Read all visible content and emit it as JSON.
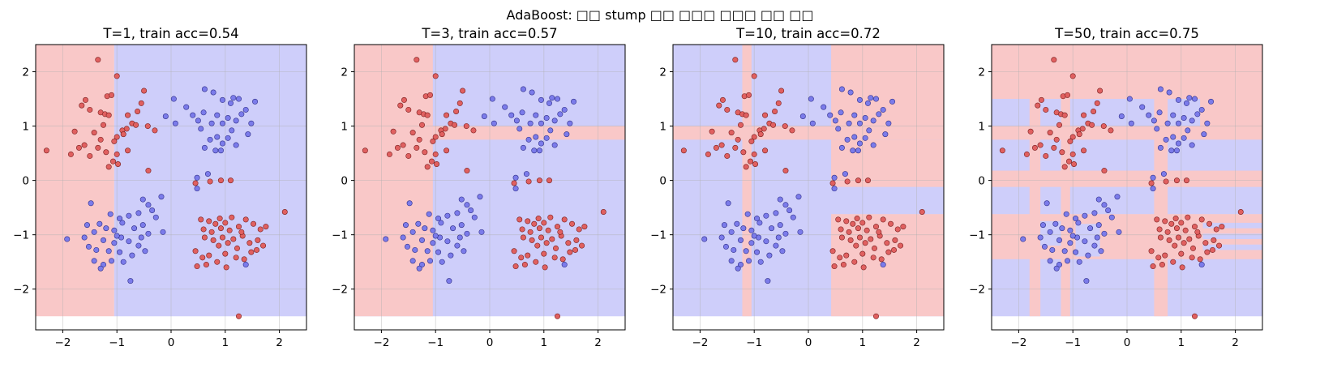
{
  "figure": {
    "suptitle": "AdaBoost: □□ stump □□ □□□ □□□ □□ □□"
  },
  "colors": {
    "red_region": "#f9c8c8",
    "blue_region": "#cecefa",
    "red_point": "#e06060",
    "blue_point": "#7b7bea",
    "point_edge": "#7a2020",
    "grid": "#b0b0b0"
  },
  "axes": {
    "xlim": [
      -2.5,
      2.5
    ],
    "ylim": [
      -2.75,
      2.5
    ],
    "xticks": [
      -2,
      -1,
      0,
      1,
      2
    ],
    "yticks": [
      -2,
      -1,
      0,
      1,
      2
    ],
    "grid": true
  },
  "chart_data": [
    {
      "type": "scatter",
      "title": "T=1, train acc=0.54",
      "T": 1,
      "train_acc": 0.54,
      "regions": [
        {
          "class": "red",
          "x0": -2.5,
          "x1": -1.05,
          "y0": -2.5,
          "y1": 2.5
        },
        {
          "class": "blue",
          "x0": -1.05,
          "x1": 2.5,
          "y0": -2.5,
          "y1": 2.5
        }
      ]
    },
    {
      "type": "scatter",
      "title": "T=3, train acc=0.57",
      "T": 3,
      "train_acc": 0.57,
      "regions": [
        {
          "class": "blue",
          "x0": -2.5,
          "x1": 2.5,
          "y0": -2.5,
          "y1": 2.5
        },
        {
          "class": "red",
          "x0": -2.5,
          "x1": -1.05,
          "y0": -2.5,
          "y1": 2.5
        },
        {
          "class": "red",
          "x0": -1.05,
          "x1": 2.5,
          "y0": 0.75,
          "y1": 1.0
        }
      ]
    },
    {
      "type": "scatter",
      "title": "T=10, train acc=0.72",
      "T": 10,
      "train_acc": 0.72,
      "regions": [
        {
          "class": "blue",
          "x0": -2.5,
          "x1": 2.5,
          "y0": -2.5,
          "y1": 2.5
        },
        {
          "class": "red",
          "x0": -2.5,
          "x1": 2.5,
          "y0": 0.75,
          "y1": 1.0
        },
        {
          "class": "red",
          "x0": -1.22,
          "x1": -1.05,
          "y0": -2.5,
          "y1": 2.5
        },
        {
          "class": "red",
          "x0": 0.42,
          "x1": 2.5,
          "y0": 1.0,
          "y1": 2.5
        },
        {
          "class": "red",
          "x0": 0.42,
          "x1": 2.5,
          "y0": -0.12,
          "y1": 0.75
        },
        {
          "class": "red",
          "x0": 0.42,
          "x1": 2.5,
          "y0": -2.5,
          "y1": -0.62
        }
      ]
    },
    {
      "type": "scatter",
      "title": "T=50, train acc=0.75",
      "T": 50,
      "train_acc": 0.75,
      "regions": [
        {
          "class": "blue",
          "x0": -2.5,
          "x1": 2.5,
          "y0": -2.5,
          "y1": 2.5
        },
        {
          "class": "red",
          "x0": -2.5,
          "x1": 2.5,
          "y0": 1.5,
          "y1": 2.5
        },
        {
          "class": "red",
          "x0": -2.5,
          "x1": 2.5,
          "y0": 0.75,
          "y1": 1.0
        },
        {
          "class": "red",
          "x0": -2.5,
          "x1": 2.5,
          "y0": -0.12,
          "y1": 0.18
        },
        {
          "class": "red",
          "x0": -2.5,
          "x1": 2.5,
          "y0": -1.45,
          "y1": -0.62
        },
        {
          "class": "red",
          "x0": -1.8,
          "x1": -1.6,
          "y0": -2.5,
          "y1": 2.5
        },
        {
          "class": "red",
          "x0": -1.22,
          "x1": -1.05,
          "y0": -2.5,
          "y1": 2.5
        },
        {
          "class": "red",
          "x0": 0.5,
          "x1": 0.75,
          "y0": -2.5,
          "y1": 2.5
        },
        {
          "class": "red",
          "x0": 1.35,
          "x1": 2.5,
          "y0": 1.0,
          "y1": 2.5
        },
        {
          "class": "blue",
          "x0": -1.6,
          "x1": -1.22,
          "y0": -1.2,
          "y1": -0.75
        },
        {
          "class": "blue",
          "x0": -0.95,
          "x1": -0.5,
          "y0": -1.4,
          "y1": -0.8
        },
        {
          "class": "blue",
          "x0": 1.4,
          "x1": 2.5,
          "y0": -0.88,
          "y1": -0.78
        },
        {
          "class": "blue",
          "x0": 1.4,
          "x1": 2.5,
          "y0": -1.08,
          "y1": -0.98
        },
        {
          "class": "blue",
          "x0": 1.4,
          "x1": 2.5,
          "y0": -1.28,
          "y1": -1.18
        }
      ]
    }
  ],
  "points": {
    "red": [
      [
        -2.3,
        0.55
      ],
      [
        -1.35,
        2.22
      ],
      [
        -1.18,
        1.55
      ],
      [
        -1.1,
        1.57
      ],
      [
        -1.0,
        1.92
      ],
      [
        -1.58,
        1.48
      ],
      [
        -1.5,
        1.3
      ],
      [
        -1.65,
        1.38
      ],
      [
        -1.3,
        1.25
      ],
      [
        -1.22,
        1.22
      ],
      [
        -1.15,
        1.2
      ],
      [
        -0.5,
        1.65
      ],
      [
        -0.55,
        1.42
      ],
      [
        -0.62,
        1.27
      ],
      [
        -0.8,
        1.2
      ],
      [
        -0.72,
        1.05
      ],
      [
        -0.82,
        0.95
      ],
      [
        -0.9,
        0.92
      ],
      [
        -0.88,
        0.85
      ],
      [
        -1.0,
        0.8
      ],
      [
        -1.05,
        0.72
      ],
      [
        -0.65,
        1.02
      ],
      [
        -0.43,
        1.0
      ],
      [
        -0.3,
        0.92
      ],
      [
        -1.25,
        1.02
      ],
      [
        -1.3,
        0.75
      ],
      [
        -1.42,
        0.88
      ],
      [
        -1.78,
        0.9
      ],
      [
        -1.6,
        0.65
      ],
      [
        -1.7,
        0.6
      ],
      [
        -1.85,
        0.48
      ],
      [
        -1.5,
        0.45
      ],
      [
        -1.2,
        0.52
      ],
      [
        -1.0,
        0.48
      ],
      [
        -1.07,
        0.35
      ],
      [
        -1.15,
        0.25
      ],
      [
        -0.8,
        0.55
      ],
      [
        -0.42,
        0.18
      ],
      [
        -0.98,
        0.3
      ],
      [
        -1.35,
        0.6
      ],
      [
        0.45,
        -0.05
      ],
      [
        0.72,
        -0.02
      ],
      [
        0.92,
        0.0
      ],
      [
        1.1,
        0.0
      ],
      [
        2.1,
        -0.58
      ],
      [
        1.25,
        -2.5
      ],
      [
        0.55,
        -0.72
      ],
      [
        0.6,
        -0.9
      ],
      [
        0.7,
        -0.75
      ],
      [
        0.82,
        -0.8
      ],
      [
        0.9,
        -0.7
      ],
      [
        1.0,
        -0.78
      ],
      [
        1.12,
        -0.68
      ],
      [
        1.25,
        -0.85
      ],
      [
        1.38,
        -0.72
      ],
      [
        1.52,
        -0.8
      ],
      [
        1.65,
        -0.9
      ],
      [
        0.62,
        -1.05
      ],
      [
        0.78,
        -1.1
      ],
      [
        0.88,
        -1.2
      ],
      [
        0.95,
        -1.05
      ],
      [
        1.05,
        -1.15
      ],
      [
        1.15,
        -1.08
      ],
      [
        1.22,
        -1.25
      ],
      [
        1.32,
        -1.02
      ],
      [
        1.45,
        -1.15
      ],
      [
        1.6,
        -1.1
      ],
      [
        1.7,
        -1.2
      ],
      [
        0.45,
        -1.3
      ],
      [
        0.58,
        -1.42
      ],
      [
        0.7,
        -1.38
      ],
      [
        0.85,
        -1.5
      ],
      [
        1.0,
        -1.35
      ],
      [
        1.2,
        -1.42
      ],
      [
        1.35,
        -1.45
      ],
      [
        1.48,
        -1.32
      ],
      [
        0.48,
        -1.58
      ],
      [
        0.65,
        -1.55
      ],
      [
        1.75,
        -0.85
      ],
      [
        1.3,
        -0.95
      ],
      [
        1.08,
        -0.92
      ],
      [
        0.75,
        -0.95
      ],
      [
        0.92,
        -0.88
      ],
      [
        1.58,
        -1.28
      ],
      [
        1.02,
        -1.6
      ]
    ],
    "blue": [
      [
        0.05,
        1.5
      ],
      [
        0.28,
        1.35
      ],
      [
        0.62,
        1.68
      ],
      [
        0.78,
        1.62
      ],
      [
        0.95,
        1.48
      ],
      [
        1.1,
        1.42
      ],
      [
        1.15,
        1.52
      ],
      [
        1.25,
        1.5
      ],
      [
        1.38,
        1.3
      ],
      [
        1.55,
        1.45
      ],
      [
        0.4,
        1.2
      ],
      [
        0.5,
        1.1
      ],
      [
        0.6,
        1.25
      ],
      [
        0.75,
        1.05
      ],
      [
        0.85,
        1.2
      ],
      [
        0.95,
        1.05
      ],
      [
        1.05,
        1.15
      ],
      [
        1.2,
        1.1
      ],
      [
        1.3,
        1.22
      ],
      [
        1.48,
        1.05
      ],
      [
        -0.1,
        1.18
      ],
      [
        0.08,
        1.05
      ],
      [
        0.55,
        0.95
      ],
      [
        0.72,
        0.75
      ],
      [
        0.85,
        0.8
      ],
      [
        0.95,
        0.68
      ],
      [
        1.05,
        0.78
      ],
      [
        1.2,
        0.65
      ],
      [
        1.42,
        0.85
      ],
      [
        0.62,
        0.6
      ],
      [
        0.82,
        0.55
      ],
      [
        0.48,
        0.05
      ],
      [
        0.68,
        0.12
      ],
      [
        0.92,
        0.55
      ],
      [
        1.12,
        0.92
      ],
      [
        -0.52,
        -0.35
      ],
      [
        -0.42,
        -0.45
      ],
      [
        -0.35,
        -0.55
      ],
      [
        -0.6,
        -0.6
      ],
      [
        -0.78,
        -0.65
      ],
      [
        -0.95,
        -0.7
      ],
      [
        -1.12,
        -0.62
      ],
      [
        -1.48,
        -0.42
      ],
      [
        -1.32,
        -0.8
      ],
      [
        -1.2,
        -0.88
      ],
      [
        -1.05,
        -0.92
      ],
      [
        -0.9,
        -0.78
      ],
      [
        -0.68,
        -0.88
      ],
      [
        -0.52,
        -0.82
      ],
      [
        -0.42,
        -0.98
      ],
      [
        -0.15,
        -0.95
      ],
      [
        -1.55,
        -0.82
      ],
      [
        -1.42,
        -0.95
      ],
      [
        -1.25,
        -1.1
      ],
      [
        -1.05,
        -1.15
      ],
      [
        -0.92,
        -1.05
      ],
      [
        -0.78,
        -1.12
      ],
      [
        -0.6,
        -1.2
      ],
      [
        -0.48,
        -1.3
      ],
      [
        -1.52,
        -1.22
      ],
      [
        -1.38,
        -1.28
      ],
      [
        -1.15,
        -1.3
      ],
      [
        -0.95,
        -1.32
      ],
      [
        -0.72,
        -1.38
      ],
      [
        -1.42,
        -1.48
      ],
      [
        -1.25,
        -1.55
      ],
      [
        -1.1,
        -1.48
      ],
      [
        -0.88,
        -1.5
      ],
      [
        -1.3,
        -1.62
      ],
      [
        -0.75,
        -1.85
      ],
      [
        -1.92,
        -1.08
      ],
      [
        -0.28,
        -0.68
      ],
      [
        -0.18,
        -0.3
      ],
      [
        -1.0,
        -1.02
      ],
      [
        -1.6,
        -1.05
      ],
      [
        0.48,
        -0.15
      ],
      [
        1.38,
        -1.55
      ],
      [
        -0.55,
        -1.05
      ]
    ]
  }
}
